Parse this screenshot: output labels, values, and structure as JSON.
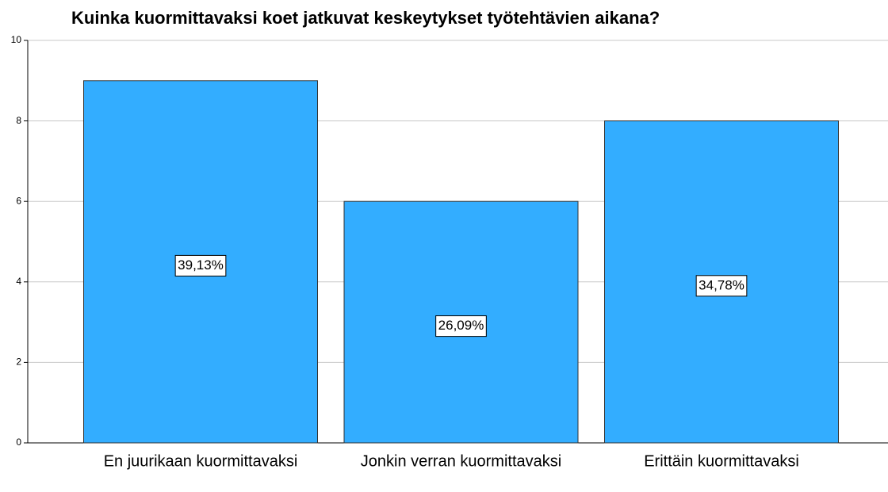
{
  "chart_data": {
    "type": "bar",
    "title": "Kuinka kuormittavaksi koet jatkuvat keskeytykset työtehtävien aikana?",
    "categories": [
      "En juurikaan kuormittavaksi",
      "Jonkin verran kuormittavaksi",
      "Erittäin kuormittavaksi"
    ],
    "values": [
      9,
      6,
      8
    ],
    "value_labels": [
      "39,13%",
      "26,09%",
      "34,78%"
    ],
    "color": "#33adff",
    "ylim": [
      0,
      10
    ],
    "yticks": [
      0,
      2,
      4,
      6,
      8,
      10
    ],
    "grid": true
  }
}
